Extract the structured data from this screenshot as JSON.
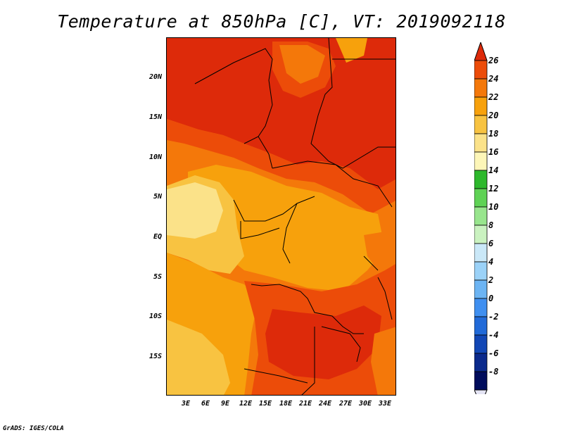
{
  "title": "Temperature at 850hPa [C], VT: 2019092118",
  "credit": "GrADS: IGES/COLA",
  "lat_labels": [
    "20N",
    "15N",
    "10N",
    "5N",
    "EQ",
    "5S",
    "10S",
    "15S"
  ],
  "lon_labels": [
    "3E",
    "6E",
    "9E",
    "12E",
    "15E",
    "18E",
    "21E",
    "24E",
    "27E",
    "30E",
    "33E"
  ],
  "colorbar": {
    "labels": [
      "26",
      "24",
      "22",
      "20",
      "18",
      "16",
      "14",
      "12",
      "10",
      "8",
      "6",
      "4",
      "2",
      "0",
      "-2",
      "-4",
      "-6",
      "-8"
    ],
    "colors": [
      "#dd2a0a",
      "#ec4c09",
      "#f4780a",
      "#f7a10c",
      "#f8c341",
      "#fbe289",
      "#fdf6b8",
      "#2db82c",
      "#5fd255",
      "#98e58d",
      "#caf2c0",
      "#cae8f8",
      "#9bd2f8",
      "#6cb4f3",
      "#3f8ff0",
      "#216ad8",
      "#1247b5",
      "#0b2a8c",
      "#000c5c",
      "#e4e4f4"
    ]
  },
  "map_colors": {
    "c26": "#dd2a0a",
    "c24": "#ec4c09",
    "c22": "#f4780a",
    "c20": "#f7a10c",
    "c18": "#f8c341",
    "c16": "#fbe289",
    "c14": "#fdf6b8"
  }
}
